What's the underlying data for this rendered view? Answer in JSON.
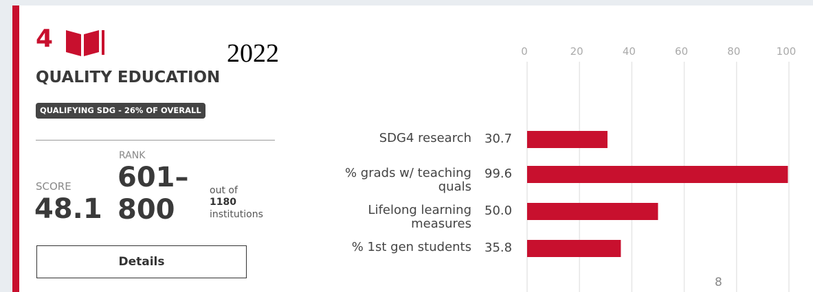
{
  "header": {
    "goal_number": "4",
    "year": "2022",
    "title": "QUALITY EDUCATION",
    "badge": "QUALIFYING SDG - 26% OF OVERALL"
  },
  "score": {
    "label": "SCORE",
    "value": "48.1"
  },
  "rank": {
    "label": "RANK",
    "value": "601–800",
    "prefix": "out of",
    "count": "1180",
    "suffix": "institutions"
  },
  "button": "Details",
  "page_number": "8",
  "chart_data": {
    "type": "bar",
    "orientation": "horizontal",
    "categories": [
      "SDG4 research",
      "% grads w/ teaching quals",
      "Lifelong learning measures",
      "% 1st gen students"
    ],
    "values": [
      30.7,
      99.6,
      50.0,
      35.8
    ],
    "value_labels": [
      "30.7",
      "99.6",
      "50.0",
      "35.8"
    ],
    "color": "#c8102e",
    "xlim": [
      0,
      100
    ],
    "xticks": [
      0,
      20,
      40,
      60,
      80,
      100
    ],
    "grid": true
  }
}
